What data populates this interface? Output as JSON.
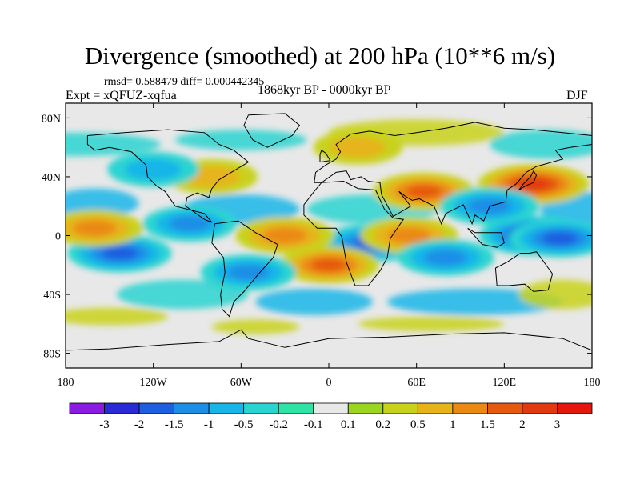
{
  "title": "Divergence (smoothed) at 200 hPa (10**6 m/s)",
  "stats": "rmsd= 0.588479 diff= 0.000442345",
  "experiment": "Expt = xQFUZ-xqfua",
  "period": "1868kyr BP - 0000kyr BP",
  "season": "DJF",
  "lat_ticks": [
    "80N",
    "40N",
    "0",
    "40S",
    "80S"
  ],
  "lat_values": [
    80,
    40,
    0,
    -40,
    -80
  ],
  "lon_ticks": [
    "180",
    "120W",
    "60W",
    "0",
    "60E",
    "120E",
    "180"
  ],
  "lon_values": [
    -180,
    -120,
    -60,
    0,
    60,
    120,
    180
  ],
  "colorbar": {
    "labels": [
      "-3",
      "-2",
      "-1.5",
      "-1",
      "-0.5",
      "-0.2",
      "-0.1",
      "0.1",
      "0.2",
      "0.5",
      "1",
      "1.5",
      "2",
      "3"
    ],
    "colors": [
      "#8a1be0",
      "#2a2ad6",
      "#1e5fe0",
      "#1c8ee6",
      "#18b6e8",
      "#2ad4d0",
      "#2ee3a4",
      "#e8e8e8",
      "#9ad520",
      "#c8d21a",
      "#e6b41a",
      "#ea8a14",
      "#e65a10",
      "#e23a10",
      "#e4160e"
    ]
  },
  "chart_data": {
    "type": "heatmap",
    "variable": "Divergence (smoothed) at 200 hPa",
    "units": "10**6 m/s",
    "lon_range": [
      -180,
      180
    ],
    "lat_range": [
      -90,
      90
    ],
    "contour_levels": [
      -3,
      -2,
      -1.5,
      -1,
      -0.5,
      -0.2,
      -0.1,
      0.1,
      0.2,
      0.5,
      1,
      1.5,
      2,
      3
    ],
    "features": [
      {
        "lon": 140,
        "lat": 35,
        "value": 2.4
      },
      {
        "lon": 140,
        "lat": 0,
        "value": -2.2
      },
      {
        "lon": 158,
        "lat": -2,
        "value": -1.6
      },
      {
        "lon": -143,
        "lat": -12,
        "value": -1.8
      },
      {
        "lon": -95,
        "lat": 8,
        "value": -1.0
      },
      {
        "lon": 30,
        "lat": -5,
        "value": -1.7
      },
      {
        "lon": 65,
        "lat": 30,
        "value": 1.6
      },
      {
        "lon": 110,
        "lat": 20,
        "value": -1.4
      },
      {
        "lon": -30,
        "lat": 0,
        "value": 1.4
      },
      {
        "lon": 0,
        "lat": -20,
        "value": 1.5
      },
      {
        "lon": 55,
        "lat": 0,
        "value": 1.3
      },
      {
        "lon": -160,
        "lat": 5,
        "value": 1.2
      },
      {
        "lon": -55,
        "lat": -25,
        "value": -1.1
      },
      {
        "lon": 80,
        "lat": -15,
        "value": -1.2
      },
      {
        "lon": -80,
        "lat": 40,
        "value": 0.8
      },
      {
        "lon": 20,
        "lat": 60,
        "value": 0.6
      },
      {
        "lon": -120,
        "lat": 45,
        "value": -0.8
      }
    ]
  }
}
